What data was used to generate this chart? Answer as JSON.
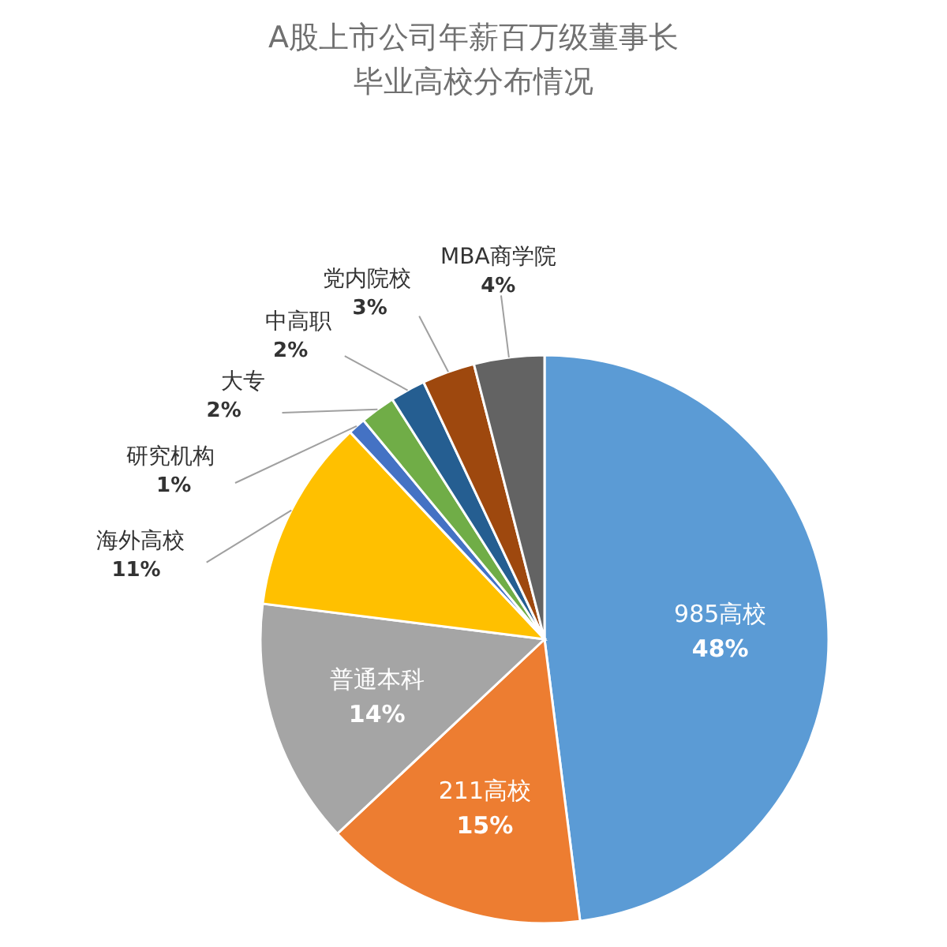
{
  "chart_data": {
    "type": "pie",
    "title": "A股上市公司年薪百万级董事长毕业高校分布情况",
    "categories": [
      "985高校",
      "211高校",
      "普通本科",
      "海外高校",
      "研究机构",
      "大专",
      "中高职",
      "党内院校",
      "MBA商学院"
    ],
    "values": [
      48,
      15,
      14,
      11,
      1,
      2,
      2,
      3,
      4
    ],
    "colors": [
      "#5b9bd5",
      "#ed7d31",
      "#a5a5a5",
      "#ffc000",
      "#4472c4",
      "#70ad47",
      "#255e91",
      "#9e480e",
      "#636363"
    ],
    "value_labels": [
      "48%",
      "15%",
      "14%",
      "11%",
      "1%",
      "2%",
      "2%",
      "3%",
      "4%"
    ]
  }
}
